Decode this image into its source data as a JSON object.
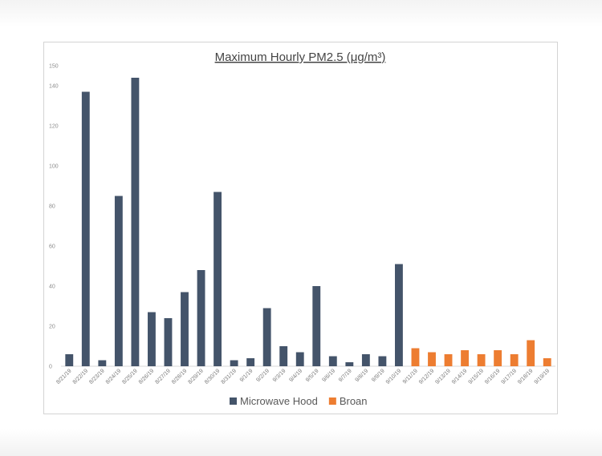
{
  "chart_data": {
    "type": "bar",
    "title": "Maximum Hourly PM2.5 (μg/m³)",
    "ylim": [
      0,
      150
    ],
    "yticks": [
      0,
      20,
      40,
      60,
      80,
      100,
      120,
      140,
      150
    ],
    "grid": false,
    "legend_position": "bottom",
    "series": [
      {
        "name": "Microwave Hood",
        "color": "#44546a",
        "categories": [
          "8/21/19",
          "8/22/19",
          "8/23/19",
          "8/24/19",
          "8/25/19",
          "8/26/19",
          "8/27/19",
          "8/28/19",
          "8/29/19",
          "8/30/19",
          "8/31/19",
          "9/1/19",
          "9/2/19",
          "9/3/19",
          "9/4/19",
          "9/5/19",
          "9/6/19",
          "9/7/19",
          "9/8/19",
          "9/9/19",
          "9/10/19"
        ],
        "values": [
          6,
          137,
          3,
          85,
          144,
          27,
          24,
          37,
          48,
          87,
          3,
          4,
          29,
          10,
          7,
          40,
          5,
          2,
          6,
          5,
          51
        ]
      },
      {
        "name": "Broan",
        "color": "#ed7d31",
        "categories": [
          "9/11/19",
          "9/12/19",
          "9/13/19",
          "9/14/19",
          "9/15/19",
          "9/16/19",
          "9/17/19",
          "9/18/19",
          "9/19/19"
        ],
        "values": [
          9,
          7,
          6,
          8,
          6,
          8,
          6,
          13,
          4
        ]
      }
    ]
  }
}
